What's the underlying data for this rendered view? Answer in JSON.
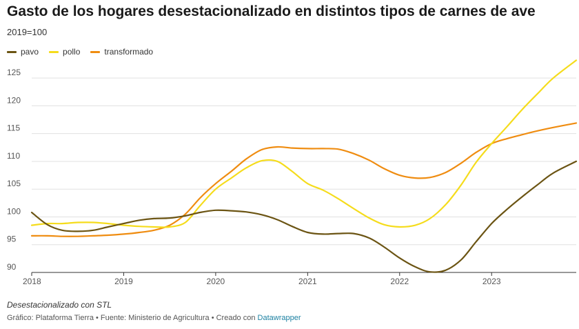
{
  "header": {
    "title": "Gasto de los hogares desestacionalizado en distintos tipos de carnes de ave",
    "subtitle": "2019=100"
  },
  "footer": {
    "notes": "Desestacionalizado con STL",
    "credit": "Gráfico: Plataforma Tierra • Fuente: Ministerio de Agricultura • Creado con ",
    "link": "Datawrapper"
  },
  "chart_data": {
    "type": "line",
    "title": "Gasto de los hogares desestacionalizado en distintos tipos de carnes de ave",
    "subtitle": "2019=100",
    "xlabel": "",
    "ylabel": "",
    "xlim": [
      2018.0,
      2023.92
    ],
    "ylim": [
      90,
      128
    ],
    "yticks": [
      90,
      95,
      100,
      105,
      110,
      115,
      120,
      125
    ],
    "xticks": [
      2018,
      2019,
      2020,
      2021,
      2022,
      2023
    ],
    "grid": true,
    "legend_position": "top-left",
    "series": [
      {
        "name": "pavo",
        "color": "#6b5413",
        "points": [
          [
            2018.0,
            100.8
          ],
          [
            2018.17,
            98.6
          ],
          [
            2018.33,
            97.6
          ],
          [
            2018.5,
            97.4
          ],
          [
            2018.67,
            97.6
          ],
          [
            2018.83,
            98.2
          ],
          [
            2019.0,
            98.8
          ],
          [
            2019.17,
            99.4
          ],
          [
            2019.33,
            99.7
          ],
          [
            2019.5,
            99.8
          ],
          [
            2019.67,
            100.2
          ],
          [
            2019.83,
            100.8
          ],
          [
            2020.0,
            101.2
          ],
          [
            2020.17,
            101.1
          ],
          [
            2020.33,
            100.9
          ],
          [
            2020.5,
            100.4
          ],
          [
            2020.67,
            99.5
          ],
          [
            2020.83,
            98.3
          ],
          [
            2021.0,
            97.2
          ],
          [
            2021.17,
            96.9
          ],
          [
            2021.33,
            97.0
          ],
          [
            2021.5,
            97.0
          ],
          [
            2021.67,
            96.2
          ],
          [
            2021.83,
            94.6
          ],
          [
            2022.0,
            92.6
          ],
          [
            2022.17,
            91.0
          ],
          [
            2022.33,
            90.1
          ],
          [
            2022.5,
            90.4
          ],
          [
            2022.67,
            92.3
          ],
          [
            2022.83,
            95.5
          ],
          [
            2023.0,
            98.8
          ],
          [
            2023.17,
            101.4
          ],
          [
            2023.33,
            103.6
          ],
          [
            2023.5,
            105.8
          ],
          [
            2023.67,
            107.9
          ],
          [
            2023.92,
            110.0
          ]
        ]
      },
      {
        "name": "pollo",
        "color": "#f5dc1c",
        "points": [
          [
            2018.0,
            98.5
          ],
          [
            2018.17,
            98.8
          ],
          [
            2018.33,
            98.8
          ],
          [
            2018.5,
            99.0
          ],
          [
            2018.67,
            99.0
          ],
          [
            2018.83,
            98.8
          ],
          [
            2019.0,
            98.5
          ],
          [
            2019.17,
            98.3
          ],
          [
            2019.33,
            98.2
          ],
          [
            2019.5,
            98.2
          ],
          [
            2019.67,
            99.0
          ],
          [
            2019.83,
            102.0
          ],
          [
            2020.0,
            105.0
          ],
          [
            2020.17,
            107.0
          ],
          [
            2020.33,
            108.8
          ],
          [
            2020.5,
            110.1
          ],
          [
            2020.67,
            110.0
          ],
          [
            2020.83,
            108.2
          ],
          [
            2021.0,
            106.0
          ],
          [
            2021.17,
            104.8
          ],
          [
            2021.33,
            103.3
          ],
          [
            2021.5,
            101.5
          ],
          [
            2021.67,
            99.8
          ],
          [
            2021.83,
            98.6
          ],
          [
            2022.0,
            98.2
          ],
          [
            2022.17,
            98.5
          ],
          [
            2022.33,
            99.7
          ],
          [
            2022.5,
            102.2
          ],
          [
            2022.67,
            105.8
          ],
          [
            2022.83,
            109.8
          ],
          [
            2023.0,
            113.2
          ],
          [
            2023.17,
            116.3
          ],
          [
            2023.33,
            119.3
          ],
          [
            2023.5,
            122.2
          ],
          [
            2023.67,
            125.0
          ],
          [
            2023.92,
            128.2
          ]
        ]
      },
      {
        "name": "transformado",
        "color": "#ef8c10",
        "points": [
          [
            2018.0,
            96.6
          ],
          [
            2018.17,
            96.6
          ],
          [
            2018.33,
            96.5
          ],
          [
            2018.5,
            96.5
          ],
          [
            2018.67,
            96.6
          ],
          [
            2018.83,
            96.7
          ],
          [
            2019.0,
            96.9
          ],
          [
            2019.17,
            97.2
          ],
          [
            2019.33,
            97.6
          ],
          [
            2019.5,
            98.5
          ],
          [
            2019.67,
            100.5
          ],
          [
            2019.83,
            103.4
          ],
          [
            2020.0,
            106.0
          ],
          [
            2020.17,
            108.2
          ],
          [
            2020.33,
            110.4
          ],
          [
            2020.5,
            112.1
          ],
          [
            2020.67,
            112.6
          ],
          [
            2020.83,
            112.4
          ],
          [
            2021.0,
            112.3
          ],
          [
            2021.17,
            112.3
          ],
          [
            2021.33,
            112.2
          ],
          [
            2021.5,
            111.4
          ],
          [
            2021.67,
            110.2
          ],
          [
            2021.83,
            108.7
          ],
          [
            2022.0,
            107.5
          ],
          [
            2022.17,
            107.0
          ],
          [
            2022.33,
            107.1
          ],
          [
            2022.5,
            108.0
          ],
          [
            2022.67,
            109.7
          ],
          [
            2022.83,
            111.6
          ],
          [
            2023.0,
            113.2
          ],
          [
            2023.17,
            114.1
          ],
          [
            2023.33,
            114.8
          ],
          [
            2023.5,
            115.5
          ],
          [
            2023.67,
            116.1
          ],
          [
            2023.92,
            116.9
          ]
        ]
      }
    ]
  }
}
